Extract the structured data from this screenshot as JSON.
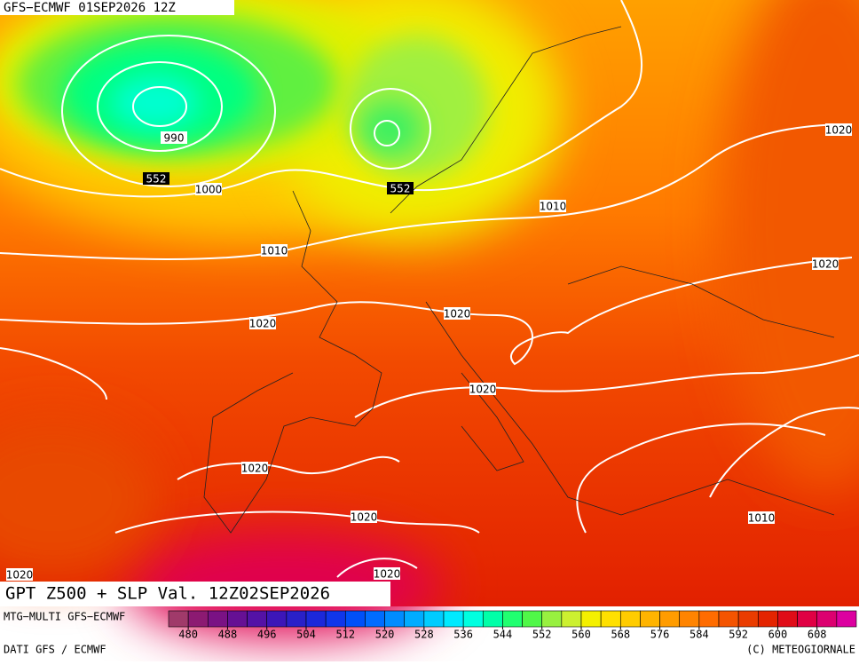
{
  "header": {
    "title": "GFS−ECMWF 01SEP2026 12Z"
  },
  "map": {
    "isobar_labels": [
      "990",
      "552",
      "1000",
      "552",
      "1010",
      "1020",
      "1010",
      "1020",
      "1020",
      "1020",
      "1020",
      "1020",
      "1020",
      "1010",
      "1020",
      "1020"
    ]
  },
  "footer": {
    "title": "GPT Z500 + SLP Val. 12Z02SEP2026",
    "model": "MTG−MULTI GFS−ECMWF",
    "source": "DATI GFS / ECMWF",
    "credit": "(C) METEOGIORNALE"
  },
  "legend": {
    "ticks": [
      480,
      488,
      496,
      504,
      512,
      520,
      528,
      536,
      544,
      552,
      560,
      568,
      576,
      584,
      592,
      600,
      608
    ],
    "colors": [
      "#a03a6a",
      "#8c1a72",
      "#7a1284",
      "#661094",
      "#5412a6",
      "#3c16b8",
      "#2a20c8",
      "#1c28da",
      "#1036ea",
      "#0050f8",
      "#006cff",
      "#008cff",
      "#00acff",
      "#00ccff",
      "#00eaff",
      "#00ffe0",
      "#00ffa8",
      "#20ff70",
      "#50f848",
      "#98f040",
      "#ccf030",
      "#f4f000",
      "#ffe000",
      "#ffcc00",
      "#ffb400",
      "#ff9c00",
      "#ff8400",
      "#ff6c00",
      "#f45400",
      "#ea3c00",
      "#e42400",
      "#e00c18",
      "#e00044",
      "#dc0070",
      "#dc00a0"
    ]
  }
}
